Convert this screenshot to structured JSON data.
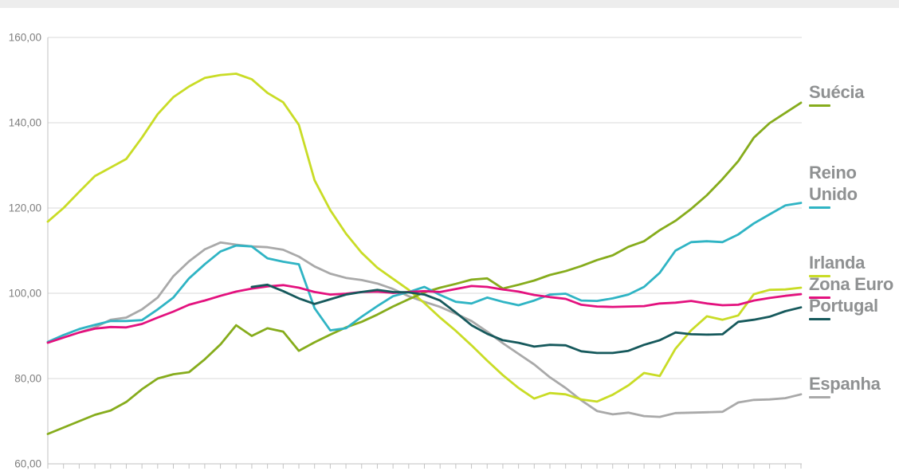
{
  "page": {
    "top_band_color": "#ededed",
    "background": "#ffffff",
    "grid_color": "#d8d8d8",
    "axis_color": "#c2c2c2",
    "tick_color": "#c2c2c2",
    "y_label_color": "#7f7f7f",
    "legend_text_color": "#8f9192"
  },
  "legend": {
    "items": [
      {
        "id": "suecia",
        "label": "Suécia",
        "color": "#86ac1c"
      },
      {
        "id": "reino-unido",
        "label": "Reino Unido",
        "color": "#2fb4c4"
      },
      {
        "id": "irlanda",
        "label": "Irlanda",
        "color": "#c9dc26"
      },
      {
        "id": "zona-euro",
        "label": "Zona Euro",
        "color": "#e3117e"
      },
      {
        "id": "portugal",
        "label": "Portugal",
        "color": "#16595c"
      },
      {
        "id": "espanha",
        "label": "Espanha",
        "color": "#a9a9a9"
      }
    ]
  },
  "chart_data": {
    "type": "line",
    "title": "",
    "xlabel": "",
    "ylabel": "",
    "ylim": [
      60,
      160
    ],
    "grid": true,
    "legend_position": "right",
    "x_point_count": 49,
    "x_tick_labels_visible": false,
    "y_ticks": [
      {
        "value": 160,
        "label": "160,00"
      },
      {
        "value": 140,
        "label": "140,00"
      },
      {
        "value": 120,
        "label": "120,00"
      },
      {
        "value": 100,
        "label": "100,00"
      },
      {
        "value": 80,
        "label": "80,00"
      },
      {
        "value": 60,
        "label": "60,00"
      }
    ],
    "series": [
      {
        "id": "espanha",
        "name": "Espanha",
        "color": "#a9a9a9",
        "start_index": 2,
        "values": [
          90.8,
          92.0,
          93.8,
          94.3,
          96.2,
          99.0,
          104.0,
          107.5,
          110.3,
          111.9,
          111.4,
          111.0,
          110.8,
          110.2,
          108.6,
          106.3,
          104.6,
          103.6,
          103.1,
          102.3,
          101.0,
          99.3,
          98.0,
          96.8,
          95.2,
          93.5,
          91.0,
          88.3,
          85.8,
          83.3,
          80.3,
          77.8,
          74.9,
          72.4,
          71.6,
          72.0,
          71.2,
          71.0,
          71.9,
          72.0,
          72.1,
          72.2,
          74.4,
          75.0,
          75.1,
          75.4,
          76.3
        ]
      },
      {
        "id": "irlanda",
        "name": "Irlanda",
        "color": "#c9dc26",
        "start_index": 0,
        "values": [
          116.8,
          120.0,
          123.8,
          127.5,
          129.5,
          131.5,
          136.5,
          142.0,
          146.0,
          148.5,
          150.5,
          151.2,
          151.5,
          150.2,
          147.0,
          144.8,
          139.5,
          126.5,
          119.5,
          114.0,
          109.5,
          106.0,
          103.4,
          100.8,
          97.7,
          94.3,
          91.2,
          87.8,
          84.2,
          80.8,
          77.8,
          75.3,
          76.6,
          76.3,
          75.1,
          74.6,
          76.2,
          78.4,
          81.3,
          80.6,
          87.0,
          91.3,
          94.6,
          93.8,
          94.8,
          99.8,
          100.8,
          100.9,
          101.3
        ]
      },
      {
        "id": "suecia",
        "name": "Suécia",
        "color": "#86ac1c",
        "start_index": 0,
        "values": [
          67.0,
          68.5,
          70.0,
          71.5,
          72.5,
          74.5,
          77.5,
          80.0,
          81.0,
          81.5,
          84.5,
          88.0,
          92.5,
          90.0,
          91.8,
          91.0,
          86.5,
          88.5,
          90.3,
          92.0,
          93.3,
          95.0,
          96.9,
          98.6,
          100.2,
          101.3,
          102.2,
          103.2,
          103.5,
          101.1,
          102.0,
          103.0,
          104.3,
          105.2,
          106.4,
          107.8,
          108.9,
          110.9,
          112.2,
          114.8,
          117.0,
          119.8,
          123.0,
          126.8,
          131.0,
          136.5,
          139.9,
          142.3,
          144.7
        ]
      },
      {
        "id": "reino-unido",
        "name": "Reino Unido",
        "color": "#2fb4c4",
        "start_index": 0,
        "values": [
          88.6,
          90.2,
          91.6,
          92.6,
          93.5,
          93.5,
          93.7,
          96.2,
          99.0,
          103.5,
          106.8,
          109.8,
          111.2,
          111.0,
          108.2,
          107.4,
          106.8,
          96.5,
          91.3,
          91.8,
          94.5,
          97.0,
          99.3,
          100.3,
          101.5,
          99.6,
          98.0,
          97.6,
          99.0,
          98.0,
          97.2,
          98.3,
          99.7,
          99.9,
          98.3,
          98.2,
          98.8,
          99.7,
          101.5,
          104.8,
          110.0,
          112.0,
          112.2,
          112.0,
          113.8,
          116.4,
          118.5,
          120.6,
          121.2
        ]
      },
      {
        "id": "zona-euro",
        "name": "Zona Euro",
        "color": "#e3117e",
        "start_index": 0,
        "values": [
          88.4,
          89.6,
          90.8,
          91.7,
          92.1,
          92.0,
          92.8,
          94.3,
          95.7,
          97.3,
          98.3,
          99.4,
          100.4,
          101.1,
          101.6,
          101.9,
          101.3,
          100.3,
          99.7,
          99.9,
          100.3,
          100.4,
          100.1,
          100.3,
          100.5,
          100.3,
          101.0,
          101.7,
          101.5,
          100.9,
          100.4,
          99.6,
          99.1,
          98.7,
          97.3,
          96.9,
          96.8,
          96.9,
          97.0,
          97.6,
          97.8,
          98.2,
          97.6,
          97.2,
          97.3,
          98.3,
          98.9,
          99.4,
          99.8
        ]
      },
      {
        "id": "portugal",
        "name": "Portugal",
        "color": "#16595c",
        "start_index": 13,
        "values": [
          101.5,
          102.0,
          100.5,
          98.8,
          97.5,
          98.6,
          99.7,
          100.3,
          100.8,
          100.3,
          100.2,
          99.7,
          98.3,
          95.5,
          92.5,
          90.5,
          89.0,
          88.4,
          87.5,
          87.9,
          87.8,
          86.4,
          86.0,
          86.0,
          86.5,
          87.9,
          89.0,
          90.8,
          90.4,
          90.3,
          90.4,
          93.3,
          93.8,
          94.5,
          95.8,
          96.7
        ]
      }
    ]
  }
}
